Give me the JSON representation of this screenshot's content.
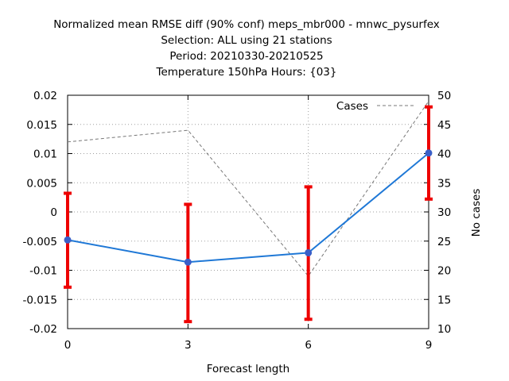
{
  "chart_data": {
    "type": "line",
    "title_lines": [
      "Normalized mean RMSE diff (90% conf) meps_mbr000 - mnwc_pysurfex",
      "Selection: ALL using    21 stations",
      "Period: 20210330-20210525",
      "Temperature 150hPa   Hours: {03}"
    ],
    "xlabel": "Forecast length",
    "ylabel": "",
    "y2label": "No cases",
    "x": [
      0,
      3,
      6,
      9
    ],
    "xlim": [
      0,
      9
    ],
    "xticks": [
      "0",
      "3",
      "6",
      "9"
    ],
    "ylim": [
      -0.02,
      0.02
    ],
    "yticks": [
      "-0.02",
      "-0.015",
      "-0.01",
      "-0.005",
      "0",
      "0.005",
      "0.01",
      "0.015",
      "0.02"
    ],
    "y2lim": [
      10,
      50
    ],
    "y2ticks": [
      "10",
      "15",
      "20",
      "25",
      "30",
      "35",
      "40",
      "45",
      "50"
    ],
    "grid": true,
    "legend_position": "top-right",
    "series": [
      {
        "values": [
          -0.0048,
          -0.0086,
          -0.007,
          0.0101
        ],
        "color": "#1f78d6",
        "marker_color": "#3a5fc8",
        "errorbars": {
          "lower": [
            -0.0129,
            -0.0188,
            -0.0184,
            0.0022
          ],
          "upper": [
            0.0032,
            0.0013,
            0.0043,
            0.018
          ],
          "color": "#ee0000"
        }
      },
      {
        "name": "Cases",
        "axis": "right",
        "values": [
          42,
          44,
          19,
          49
        ],
        "color": "#777777",
        "dash": true
      }
    ]
  }
}
